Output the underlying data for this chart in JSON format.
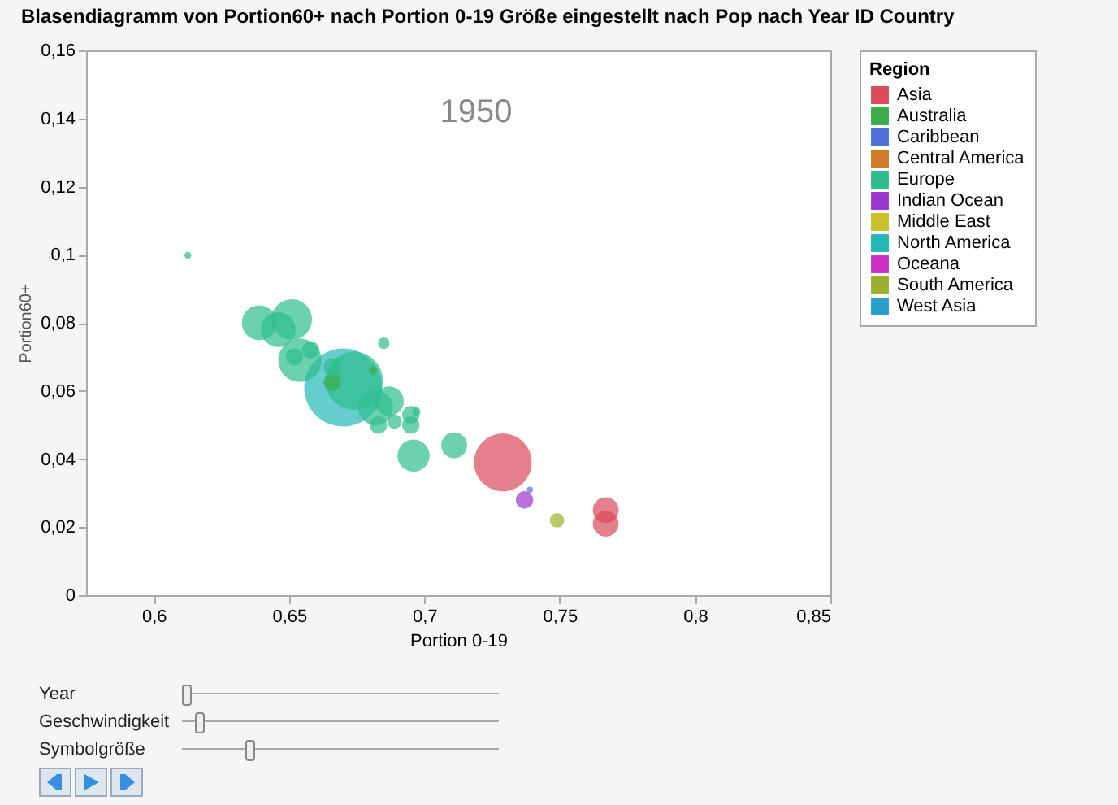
{
  "chart_data": {
    "type": "bubble",
    "title": "Blasendiagramm von Portion60+ nach Portion 0-19 Größe eingestellt nach Pop nach Year ID Country",
    "xlabel": "Portion 0-19",
    "ylabel": "Portion60+",
    "legend_title": "Region",
    "xlim": [
      0.575,
      0.85
    ],
    "xticks": [
      {
        "value": 0.6,
        "label": "0,6"
      },
      {
        "value": 0.65,
        "label": "0,65"
      },
      {
        "value": 0.7,
        "label": "0,7"
      },
      {
        "value": 0.75,
        "label": "0,75"
      },
      {
        "value": 0.8,
        "label": "0,8"
      },
      {
        "value": 0.85,
        "label": "0,85"
      }
    ],
    "ylim": [
      0,
      0.16
    ],
    "yticks": [
      0,
      {
        "value": 0.02,
        "label": "0,02"
      },
      {
        "value": 0.04,
        "label": "0,04"
      },
      {
        "value": 0.06,
        "label": "0,06"
      },
      {
        "value": 0.08,
        "label": "0,08"
      },
      {
        "value": 0.1,
        "label": "0,1"
      },
      {
        "value": 0.12,
        "label": "0,12"
      },
      {
        "value": 0.14,
        "label": "0,14"
      },
      {
        "value": 0.16,
        "label": "0,16"
      }
    ],
    "grid": false,
    "legend": "top right",
    "marker": "circle",
    "annotations": [
      "1950",
      "Year",
      "Geschwindigkeit",
      "Symbolgröße"
    ],
    "series": [
      {
        "name": "Asia",
        "color": "#d94a5a",
        "x": [
          0.729,
          0.767,
          0.767
        ],
        "values": [
          0.039,
          0.025,
          0.021
        ],
        "sizes": [
          0.55,
          0.11,
          0.11
        ]
      },
      {
        "name": "Australia",
        "color": "#3aaf4a",
        "x": [
          0.666,
          0.681
        ],
        "values": [
          0.0625,
          0.066
        ],
        "sizes": [
          0.05,
          0.012
        ]
      },
      {
        "name": "Caribbean",
        "color": "#4c70d8",
        "x": [
          0.739
        ],
        "values": [
          0.031
        ],
        "sizes": [
          0.006
        ]
      },
      {
        "name": "Central America",
        "color": "#d27a2a"
      },
      {
        "name": "Europe",
        "color": "#2ebd8e",
        "x": [
          0.6126,
          0.639,
          0.651,
          0.646,
          0.654,
          0.652,
          0.658,
          0.674,
          0.666,
          0.685,
          0.682,
          0.687,
          0.683,
          0.689,
          0.695,
          0.695,
          0.697,
          0.696,
          0.711
        ],
        "values": [
          0.0998,
          0.08,
          0.081,
          0.078,
          0.069,
          0.07,
          0.072,
          0.063,
          0.067,
          0.074,
          0.055,
          0.057,
          0.05,
          0.051,
          0.053,
          0.05,
          0.054,
          0.041,
          0.044
        ],
        "sizes": [
          0.008,
          0.2,
          0.27,
          0.2,
          0.31,
          0.05,
          0.05,
          0.55,
          0.05,
          0.022,
          0.2,
          0.14,
          0.05,
          0.034,
          0.05,
          0.05,
          0.012,
          0.17,
          0.11
        ]
      },
      {
        "name": "Indian Ocean",
        "color": "#9b35d0",
        "x": [
          0.737
        ],
        "values": [
          0.028
        ],
        "sizes": [
          0.05
        ]
      },
      {
        "name": "Middle East",
        "color": "#c9c02c"
      },
      {
        "name": "North America",
        "color": "#25b8b8",
        "x": [
          0.67
        ],
        "values": [
          0.061
        ],
        "sizes": [
          1
        ]
      },
      {
        "name": "Oceana",
        "color": "#cc30c4"
      },
      {
        "name": "South America",
        "color": "#98b22c",
        "x": [
          0.749
        ],
        "values": [
          0.022
        ],
        "sizes": [
          0.034
        ]
      },
      {
        "name": "West Asia",
        "color": "#2a9fc8"
      }
    ]
  }
}
